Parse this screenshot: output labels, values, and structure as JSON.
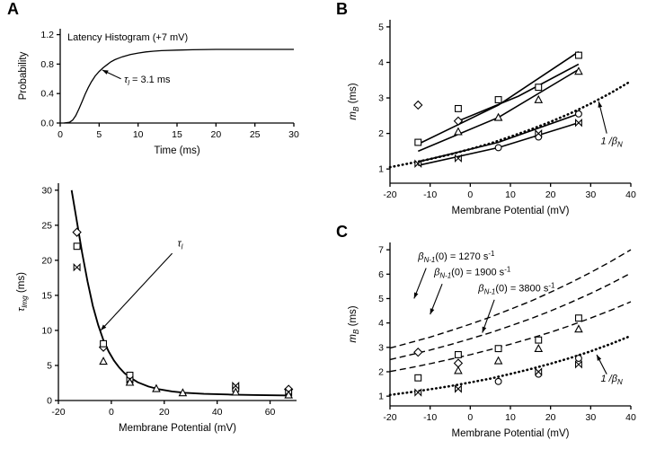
{
  "figure": {
    "background": "#ffffff",
    "ink": "#000000"
  },
  "panels": [
    {
      "id": "A",
      "label": "A"
    },
    {
      "id": "B",
      "label": "B"
    },
    {
      "id": "C",
      "label": "C"
    }
  ],
  "chart_data": [
    {
      "id": "latency-histogram",
      "type": "line",
      "title": "Latency Histogram (+7 mV)",
      "xlabel": [
        {
          "t": "Time (ms)"
        }
      ],
      "ylabel": [
        {
          "t": "Probability"
        }
      ],
      "xlim": [
        0,
        30
      ],
      "ylim": [
        0,
        1.28
      ],
      "xticks": [
        0,
        5,
        10,
        15,
        20,
        25,
        30
      ],
      "xtick_labels": [
        "0",
        "5",
        "10",
        "15",
        "20",
        "25",
        "30"
      ],
      "yticks": [
        0.0,
        0.4,
        0.8,
        1.2
      ],
      "ytick_labels": [
        "0.0",
        "0.4",
        "0.8",
        "1.2"
      ],
      "grid": false,
      "series": [
        {
          "name": "cumulative-latency",
          "kind": "line",
          "style": "solid",
          "width": 1.3,
          "x": [
            0.5,
            1.2,
            1.6,
            2.0,
            2.4,
            2.8,
            3.2,
            3.6,
            4.0,
            4.5,
            5.0,
            5.5,
            6.0,
            6.5,
            7.0,
            7.5,
            8.0,
            9.0,
            10,
            11,
            12,
            13,
            15,
            17,
            20,
            23,
            26,
            30
          ],
          "y": [
            0,
            0.01,
            0.04,
            0.1,
            0.19,
            0.29,
            0.39,
            0.48,
            0.56,
            0.64,
            0.7,
            0.75,
            0.79,
            0.83,
            0.86,
            0.88,
            0.9,
            0.93,
            0.95,
            0.965,
            0.975,
            0.982,
            0.99,
            0.995,
            1.0,
            1.0,
            1.0,
            1.0
          ]
        }
      ],
      "annotations": [
        {
          "segments": [
            {
              "t": "τ",
              "it": true
            },
            {
              "t": "l",
              "sub": true,
              "it": true
            },
            {
              "t": " = 3.1 ms"
            }
          ],
          "x": 8.2,
          "y": 0.55,
          "anchor": "start",
          "leader": {
            "from": [
              7.8,
              0.6
            ],
            "to": [
              5.4,
              0.72
            ],
            "arrow": true
          }
        }
      ]
    },
    {
      "id": "tau-vs-voltage",
      "type": "scatter",
      "xlabel": [
        {
          "t": "Membrane Potential (mV)"
        }
      ],
      "ylabel": [
        {
          "t": "τ",
          "it": true
        },
        {
          "t": "lmg",
          "sub": true,
          "it": true
        },
        {
          "t": " (ms)"
        }
      ],
      "xlim": [
        -20,
        70
      ],
      "ylim": [
        0,
        31
      ],
      "xticks": [
        -20,
        0,
        20,
        40,
        60
      ],
      "xtick_labels": [
        "-20",
        "0",
        "20",
        "40",
        "60"
      ],
      "yticks": [
        0,
        5,
        10,
        15,
        20,
        25,
        30
      ],
      "ytick_labels": [
        "0",
        "5",
        "10",
        "15",
        "20",
        "25",
        "30"
      ],
      "grid": false,
      "series": [
        {
          "name": "tau-fit-curve",
          "kind": "line",
          "style": "solid",
          "width": 1.9,
          "x": [
            -15,
            -13,
            -11,
            -9,
            -7,
            -5,
            -3,
            -1,
            1,
            3,
            5,
            7,
            10,
            14,
            18,
            23,
            28,
            35,
            45,
            55,
            68
          ],
          "y": [
            30,
            25.5,
            21,
            17,
            13.5,
            10.8,
            8.6,
            7.0,
            5.7,
            4.7,
            3.9,
            3.3,
            2.6,
            2.0,
            1.6,
            1.3,
            1.1,
            0.95,
            0.85,
            0.78,
            0.72
          ]
        },
        {
          "name": "tau-diamond",
          "kind": "scatter",
          "marker": "diamond",
          "x": [
            -13,
            -3,
            67
          ],
          "y": [
            24,
            7.6,
            1.6
          ]
        },
        {
          "name": "tau-square",
          "kind": "scatter",
          "marker": "square",
          "x": [
            -13,
            -3,
            7,
            47
          ],
          "y": [
            22,
            8.1,
            3.6,
            1.7
          ]
        },
        {
          "name": "tau-bowtie",
          "kind": "scatter",
          "marker": "bowtie",
          "x": [
            -13,
            7,
            47,
            67
          ],
          "y": [
            19,
            3.0,
            2.1,
            1.2
          ]
        },
        {
          "name": "tau-triangle",
          "kind": "scatter",
          "marker": "triangle",
          "x": [
            -3,
            7,
            17,
            27,
            47,
            67
          ],
          "y": [
            5.6,
            2.6,
            1.7,
            1.1,
            1.2,
            0.8
          ]
        }
      ],
      "annotations": [
        {
          "segments": [
            {
              "t": "τ",
              "it": true
            },
            {
              "t": "l",
              "sub": true,
              "it": true
            }
          ],
          "x": 25,
          "y": 22,
          "anchor": "start",
          "leader": {
            "from": [
              23,
              21
            ],
            "to": [
              -4,
              10
            ],
            "arrow": true
          }
        }
      ]
    },
    {
      "id": "mb-vs-voltage-b",
      "type": "scatter",
      "xlabel": [
        {
          "t": "Membrane Potential (mV)"
        }
      ],
      "ylabel": [
        {
          "t": "m",
          "it": true
        },
        {
          "t": "B",
          "sub": true,
          "it": true
        },
        {
          "t": " (ms)"
        }
      ],
      "xlim": [
        -20,
        40
      ],
      "ylim": [
        0.6,
        5.2
      ],
      "xticks": [
        -20,
        -10,
        0,
        10,
        20,
        30,
        40
      ],
      "xtick_labels": [
        "-20",
        "-10",
        "0",
        "10",
        "20",
        "30",
        "40"
      ],
      "yticks": [
        1,
        2,
        3,
        4,
        5
      ],
      "ytick_labels": [
        "1",
        "2",
        "3",
        "4",
        "5"
      ],
      "grid": false,
      "series": [
        {
          "name": "inverse-betaN",
          "kind": "line",
          "style": "dotted",
          "width": 2.6,
          "x": [
            -20,
            -15,
            -10,
            -5,
            0,
            5,
            10,
            15,
            20,
            25,
            30,
            35,
            40
          ],
          "y": [
            1.05,
            1.16,
            1.28,
            1.41,
            1.56,
            1.72,
            1.91,
            2.11,
            2.33,
            2.57,
            2.84,
            3.14,
            3.47
          ]
        },
        {
          "name": "line-squares",
          "kind": "line",
          "style": "solid",
          "width": 1.6,
          "x": [
            -13,
            7,
            27
          ],
          "y": [
            1.7,
            2.8,
            4.3
          ]
        },
        {
          "name": "line-diamonds",
          "kind": "line",
          "style": "solid",
          "width": 1.6,
          "x": [
            -3,
            12,
            27
          ],
          "y": [
            2.35,
            3.05,
            3.95
          ]
        },
        {
          "name": "line-triangles",
          "kind": "line",
          "style": "solid",
          "width": 1.6,
          "x": [
            -13,
            7,
            27
          ],
          "y": [
            1.5,
            2.45,
            3.8
          ]
        },
        {
          "name": "line-circles",
          "kind": "line",
          "style": "solid",
          "width": 1.6,
          "x": [
            -13,
            7,
            27
          ],
          "y": [
            1.2,
            1.75,
            2.55
          ]
        },
        {
          "name": "line-bowties",
          "kind": "line",
          "style": "solid",
          "width": 1.6,
          "x": [
            -13,
            7,
            27
          ],
          "y": [
            1.1,
            1.6,
            2.3
          ]
        },
        {
          "name": "mb-diamond",
          "kind": "scatter",
          "marker": "diamond",
          "x": [
            -13,
            -3
          ],
          "y": [
            2.8,
            2.35
          ]
        },
        {
          "name": "mb-square",
          "kind": "scatter",
          "marker": "square",
          "x": [
            -13,
            -3,
            7,
            17,
            27
          ],
          "y": [
            1.75,
            2.7,
            2.95,
            3.3,
            4.2
          ]
        },
        {
          "name": "mb-triangle",
          "kind": "scatter",
          "marker": "triangle",
          "x": [
            -3,
            7,
            17,
            27
          ],
          "y": [
            2.05,
            2.45,
            2.95,
            3.75
          ]
        },
        {
          "name": "mb-circle",
          "kind": "scatter",
          "marker": "circle",
          "x": [
            7,
            17,
            27
          ],
          "y": [
            1.6,
            1.9,
            2.55
          ]
        },
        {
          "name": "mb-bowtie",
          "kind": "scatter",
          "marker": "bowtie",
          "x": [
            -13,
            -3,
            17,
            27
          ],
          "y": [
            1.15,
            1.3,
            2.0,
            2.3
          ]
        }
      ],
      "annotations": [
        {
          "segments": [
            {
              "t": "1 /β",
              "it": true
            },
            {
              "t": "N",
              "sub": true,
              "it": true
            }
          ],
          "x": 32.5,
          "y": 1.7,
          "anchor": "start",
          "leader": {
            "from": [
              34,
              2.0
            ],
            "to": [
              32,
              2.9
            ],
            "arrow": true
          }
        }
      ]
    },
    {
      "id": "mb-vs-voltage-c",
      "type": "scatter",
      "xlabel": [
        {
          "t": "Membrane Potential (mV)"
        }
      ],
      "ylabel": [
        {
          "t": "m",
          "it": true
        },
        {
          "t": "B",
          "sub": true,
          "it": true
        },
        {
          "t": " (ms)"
        }
      ],
      "xlim": [
        -20,
        40
      ],
      "ylim": [
        0.6,
        7.3
      ],
      "xticks": [
        -20,
        -10,
        0,
        10,
        20,
        30,
        40
      ],
      "xtick_labels": [
        "-20",
        "-10",
        "0",
        "10",
        "20",
        "30",
        "40"
      ],
      "yticks": [
        1,
        2,
        3,
        4,
        5,
        6,
        7
      ],
      "ytick_labels": [
        "1",
        "2",
        "3",
        "4",
        "5",
        "6",
        "7"
      ],
      "grid": false,
      "series": [
        {
          "name": "beta-1270-curve",
          "kind": "line",
          "style": "dashed",
          "width": 1.4,
          "x": [
            -20,
            -15,
            -10,
            -5,
            0,
            5,
            10,
            15,
            20,
            25,
            30,
            35,
            40
          ],
          "y": [
            2.97,
            3.19,
            3.42,
            3.68,
            3.95,
            4.24,
            4.56,
            4.89,
            5.26,
            5.65,
            6.07,
            6.52,
            7.0
          ]
        },
        {
          "name": "beta-1900-curve",
          "kind": "line",
          "style": "dashed",
          "width": 1.4,
          "x": [
            -20,
            -15,
            -10,
            -5,
            0,
            5,
            10,
            15,
            20,
            25,
            30,
            35,
            40
          ],
          "y": [
            2.5,
            2.69,
            2.89,
            3.11,
            3.35,
            3.6,
            3.88,
            4.17,
            4.49,
            4.84,
            5.21,
            5.61,
            6.04
          ]
        },
        {
          "name": "beta-3800-curve",
          "kind": "line",
          "style": "dashed",
          "width": 1.4,
          "x": [
            -20,
            -15,
            -10,
            -5,
            0,
            5,
            10,
            15,
            20,
            25,
            30,
            35,
            40
          ],
          "y": [
            2.01,
            2.16,
            2.33,
            2.51,
            2.7,
            2.91,
            3.13,
            3.37,
            3.62,
            3.9,
            4.2,
            4.52,
            4.87
          ]
        },
        {
          "name": "inverse-betaN",
          "kind": "line",
          "style": "dotted",
          "width": 2.6,
          "x": [
            -20,
            -15,
            -10,
            -5,
            0,
            5,
            10,
            15,
            20,
            25,
            30,
            35,
            40
          ],
          "y": [
            1.05,
            1.16,
            1.28,
            1.41,
            1.56,
            1.72,
            1.91,
            2.11,
            2.33,
            2.57,
            2.84,
            3.14,
            3.47
          ]
        },
        {
          "name": "mb-diamond",
          "kind": "scatter",
          "marker": "diamond",
          "x": [
            -13,
            -3
          ],
          "y": [
            2.8,
            2.35
          ]
        },
        {
          "name": "mb-square",
          "kind": "scatter",
          "marker": "square",
          "x": [
            -13,
            -3,
            7,
            17,
            27
          ],
          "y": [
            1.75,
            2.7,
            2.95,
            3.3,
            4.2
          ]
        },
        {
          "name": "mb-triangle",
          "kind": "scatter",
          "marker": "triangle",
          "x": [
            -3,
            7,
            17,
            27
          ],
          "y": [
            2.05,
            2.45,
            2.95,
            3.75
          ]
        },
        {
          "name": "mb-circle",
          "kind": "scatter",
          "marker": "circle",
          "x": [
            7,
            17,
            27
          ],
          "y": [
            1.6,
            1.9,
            2.55
          ]
        },
        {
          "name": "mb-bowtie",
          "kind": "scatter",
          "marker": "bowtie",
          "x": [
            -13,
            -3,
            17,
            27
          ],
          "y": [
            1.15,
            1.3,
            2.0,
            2.3
          ]
        }
      ],
      "annotations": [
        {
          "segments": [
            {
              "t": "β",
              "it": true
            },
            {
              "t": "N-1",
              "sub": true,
              "it": true
            },
            {
              "t": "(0) = 1270 s"
            },
            {
              "t": "-1",
              "sup": true
            }
          ],
          "x": -13,
          "y": 6.6,
          "anchor": "start",
          "leader": {
            "from": [
              -11,
              6.25
            ],
            "to": [
              -14,
              5.0
            ],
            "arrow": true
          }
        },
        {
          "segments": [
            {
              "t": "β",
              "it": true
            },
            {
              "t": "N-1",
              "sub": true,
              "it": true
            },
            {
              "t": "(0) = 1900 s"
            },
            {
              "t": "-1",
              "sup": true
            }
          ],
          "x": -9,
          "y": 5.95,
          "anchor": "start",
          "leader": {
            "from": [
              -7,
              5.6
            ],
            "to": [
              -10,
              4.35
            ],
            "arrow": true
          }
        },
        {
          "segments": [
            {
              "t": "β",
              "it": true
            },
            {
              "t": "N-1",
              "sub": true,
              "it": true
            },
            {
              "t": "(0) = 3800 s"
            },
            {
              "t": "-1",
              "sup": true
            }
          ],
          "x": 2,
          "y": 5.3,
          "anchor": "start",
          "leader": {
            "from": [
              6,
              4.95
            ],
            "to": [
              3,
              3.6
            ],
            "arrow": true
          }
        },
        {
          "segments": [
            {
              "t": "1 /β",
              "it": true
            },
            {
              "t": "N",
              "sub": true,
              "it": true
            }
          ],
          "x": 32.5,
          "y": 1.6,
          "anchor": "start",
          "leader": {
            "from": [
              34,
              1.9
            ],
            "to": [
              31.5,
              2.7
            ],
            "arrow": true
          }
        }
      ]
    }
  ]
}
